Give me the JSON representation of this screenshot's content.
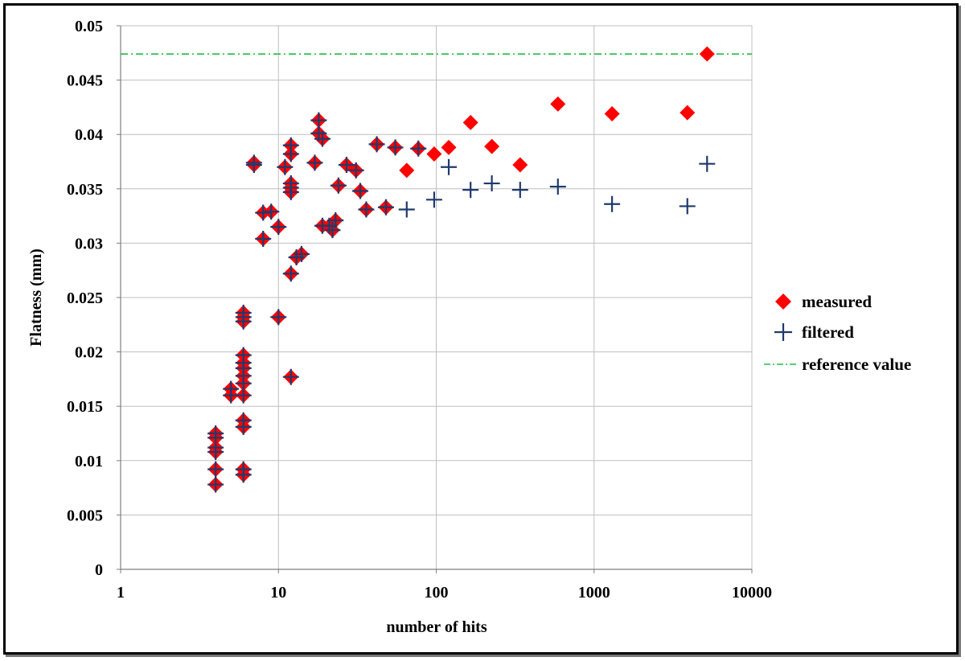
{
  "chart_data": {
    "type": "scatter",
    "title": "",
    "xlabel": "number of hits",
    "ylabel": "Flatness (mm)",
    "xscale": "log",
    "xlim": [
      1,
      10000
    ],
    "ylim": [
      0,
      0.05
    ],
    "grid": true,
    "legend_position": "right",
    "x_ticks": [
      "1",
      "10",
      "100",
      "1000",
      "10000"
    ],
    "y_ticks": [
      "0",
      "0.005",
      "0.01",
      "0.015",
      "0.02",
      "0.025",
      "0.03",
      "0.035",
      "0.04",
      "0.045",
      "0.05"
    ],
    "colors": {
      "measured": "#ff0000",
      "filtered": "#1f3a6e",
      "reference": "#22bb44",
      "grid": "#bfbfbf"
    },
    "series": [
      {
        "name": "measured",
        "marker": "diamond",
        "points": [
          [
            4,
            0.0078
          ],
          [
            4,
            0.0092
          ],
          [
            4,
            0.0108
          ],
          [
            4,
            0.0112
          ],
          [
            4,
            0.0121
          ],
          [
            4,
            0.0125
          ],
          [
            5,
            0.016
          ],
          [
            5,
            0.0166
          ],
          [
            6,
            0.0087
          ],
          [
            6,
            0.0092
          ],
          [
            6,
            0.0131
          ],
          [
            6,
            0.0137
          ],
          [
            6,
            0.016
          ],
          [
            6,
            0.0171
          ],
          [
            6,
            0.0178
          ],
          [
            6,
            0.0185
          ],
          [
            6,
            0.019
          ],
          [
            6,
            0.0197
          ],
          [
            6,
            0.0228
          ],
          [
            6,
            0.0232
          ],
          [
            6,
            0.0236
          ],
          [
            7,
            0.0372
          ],
          [
            7,
            0.0374
          ],
          [
            8,
            0.0304
          ],
          [
            8,
            0.0328
          ],
          [
            9,
            0.0329
          ],
          [
            10,
            0.0232
          ],
          [
            10,
            0.0315
          ],
          [
            11,
            0.037
          ],
          [
            12,
            0.0177
          ],
          [
            12,
            0.0272
          ],
          [
            12,
            0.0347
          ],
          [
            12,
            0.0351
          ],
          [
            12,
            0.0355
          ],
          [
            12,
            0.0382
          ],
          [
            12,
            0.039
          ],
          [
            13,
            0.0287
          ],
          [
            14,
            0.029
          ],
          [
            17,
            0.0374
          ],
          [
            18,
            0.0401
          ],
          [
            18,
            0.0413
          ],
          [
            19,
            0.0396
          ],
          [
            19,
            0.0316
          ],
          [
            21,
            0.0316
          ],
          [
            22,
            0.0312
          ],
          [
            23,
            0.0321
          ],
          [
            24,
            0.0353
          ],
          [
            27,
            0.0372
          ],
          [
            31,
            0.0367
          ],
          [
            33,
            0.0348
          ],
          [
            36,
            0.0331
          ],
          [
            42,
            0.0391
          ],
          [
            48,
            0.0333
          ],
          [
            55,
            0.0388
          ],
          [
            65,
            0.0367
          ],
          [
            77,
            0.0387
          ],
          [
            97,
            0.0382
          ],
          [
            120,
            0.0388
          ],
          [
            165,
            0.0411
          ],
          [
            225,
            0.0389
          ],
          [
            340,
            0.0372
          ],
          [
            590,
            0.0428
          ],
          [
            1300,
            0.0419
          ],
          [
            3900,
            0.042
          ],
          [
            5200,
            0.0474
          ]
        ]
      },
      {
        "name": "filtered",
        "marker": "plus",
        "points": [
          [
            4,
            0.0078
          ],
          [
            4,
            0.0092
          ],
          [
            4,
            0.0108
          ],
          [
            4,
            0.0112
          ],
          [
            4,
            0.0121
          ],
          [
            4,
            0.0125
          ],
          [
            5,
            0.016
          ],
          [
            5,
            0.0166
          ],
          [
            6,
            0.0087
          ],
          [
            6,
            0.0092
          ],
          [
            6,
            0.0131
          ],
          [
            6,
            0.0137
          ],
          [
            6,
            0.016
          ],
          [
            6,
            0.0171
          ],
          [
            6,
            0.0178
          ],
          [
            6,
            0.0185
          ],
          [
            6,
            0.019
          ],
          [
            6,
            0.0197
          ],
          [
            6,
            0.0228
          ],
          [
            6,
            0.0232
          ],
          [
            6,
            0.0236
          ],
          [
            7,
            0.0372
          ],
          [
            7,
            0.0374
          ],
          [
            8,
            0.0304
          ],
          [
            8,
            0.0328
          ],
          [
            9,
            0.0329
          ],
          [
            10,
            0.0232
          ],
          [
            10,
            0.0315
          ],
          [
            11,
            0.037
          ],
          [
            12,
            0.0177
          ],
          [
            12,
            0.0272
          ],
          [
            12,
            0.0347
          ],
          [
            12,
            0.0351
          ],
          [
            12,
            0.0355
          ],
          [
            12,
            0.0382
          ],
          [
            12,
            0.039
          ],
          [
            13,
            0.0287
          ],
          [
            14,
            0.029
          ],
          [
            17,
            0.0374
          ],
          [
            18,
            0.0401
          ],
          [
            18,
            0.0413
          ],
          [
            19,
            0.0396
          ],
          [
            19,
            0.0316
          ],
          [
            21,
            0.0316
          ],
          [
            22,
            0.0312
          ],
          [
            23,
            0.0321
          ],
          [
            24,
            0.0353
          ],
          [
            27,
            0.0372
          ],
          [
            31,
            0.0367
          ],
          [
            33,
            0.0348
          ],
          [
            36,
            0.0331
          ],
          [
            42,
            0.0391
          ],
          [
            48,
            0.0333
          ],
          [
            55,
            0.0388
          ],
          [
            65,
            0.0331
          ],
          [
            77,
            0.0387
          ],
          [
            97,
            0.034
          ],
          [
            120,
            0.037
          ],
          [
            165,
            0.0349
          ],
          [
            225,
            0.0355
          ],
          [
            340,
            0.0349
          ],
          [
            590,
            0.0352
          ],
          [
            1300,
            0.0336
          ],
          [
            3900,
            0.0334
          ],
          [
            5200,
            0.0373
          ]
        ]
      },
      {
        "name": "reference value",
        "marker": "dash-dot-line",
        "value": 0.0474
      }
    ]
  }
}
